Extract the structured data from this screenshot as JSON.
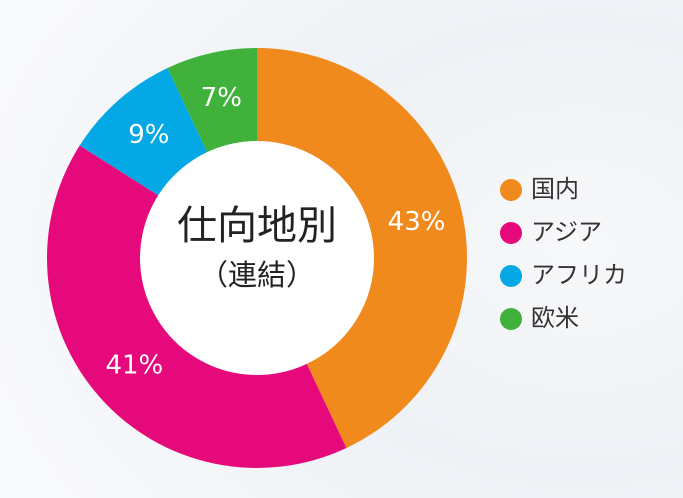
{
  "chart_data": {
    "type": "donut",
    "title": "仕向地別",
    "subtitle": "（連結）",
    "categories": [
      "国内",
      "アジア",
      "アフリカ",
      "欧米"
    ],
    "values": [
      43,
      41,
      9,
      7
    ],
    "value_labels": [
      "43%",
      "41%",
      "9%",
      "7%"
    ],
    "colors": [
      "#f08a1c",
      "#e5097b",
      "#03a8e4",
      "#40b23c"
    ],
    "legend": "right"
  }
}
